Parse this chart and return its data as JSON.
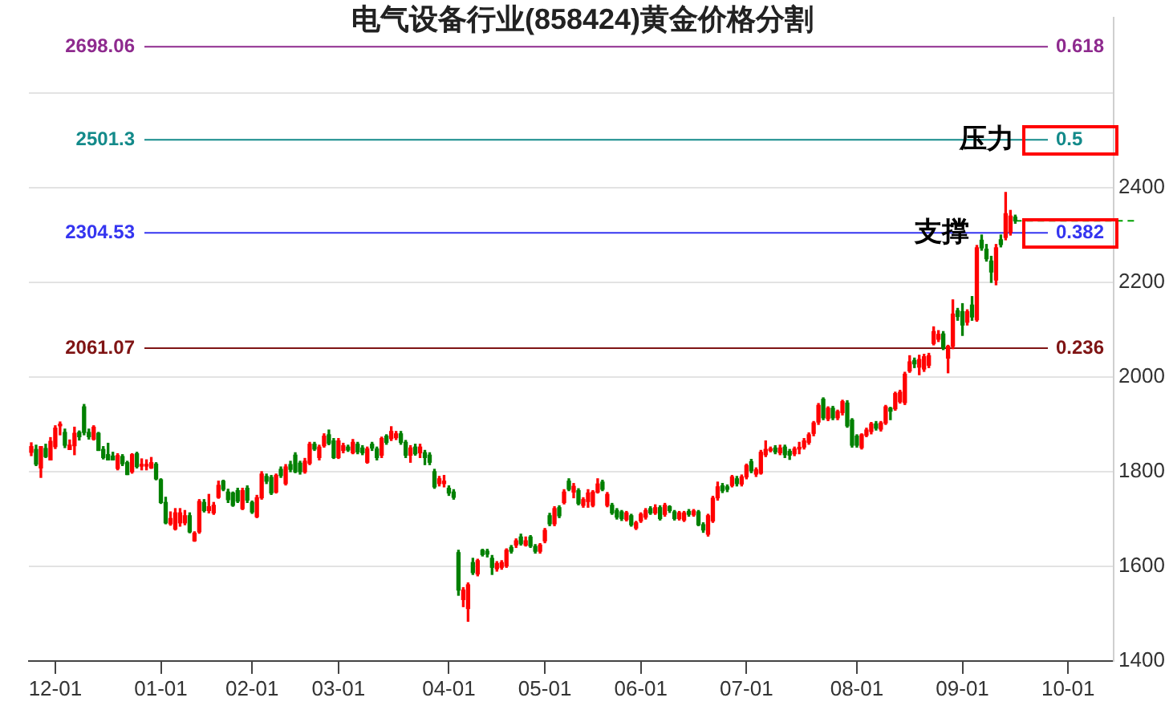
{
  "chart_data": {
    "type": "candlestick",
    "title": "电气设备行业(858424)黄金价格分割",
    "categories": [
      null,
      null,
      null,
      null,
      null,
      "12-01",
      null,
      null,
      null,
      null,
      null,
      null,
      null,
      null,
      null,
      null,
      null,
      null,
      null,
      null,
      null,
      null,
      null,
      null,
      null,
      null,
      null,
      "01-01",
      null,
      null,
      null,
      null,
      null,
      null,
      null,
      null,
      null,
      null,
      null,
      null,
      null,
      null,
      null,
      null,
      null,
      null,
      "02-01",
      null,
      null,
      null,
      null,
      null,
      null,
      null,
      null,
      null,
      null,
      null,
      null,
      null,
      null,
      null,
      null,
      null,
      "03-01",
      null,
      null,
      null,
      null,
      null,
      null,
      null,
      null,
      null,
      null,
      null,
      null,
      null,
      null,
      null,
      null,
      null,
      null,
      null,
      null,
      null,
      null,
      "04-01",
      null,
      null,
      null,
      null,
      null,
      null,
      null,
      null,
      null,
      null,
      null,
      null,
      null,
      null,
      null,
      null,
      null,
      null,
      null,
      "05-01",
      null,
      null,
      null,
      null,
      null,
      null,
      null,
      null,
      null,
      null,
      null,
      null,
      null,
      null,
      null,
      null,
      null,
      null,
      null,
      "06-01",
      null,
      null,
      null,
      null,
      null,
      null,
      null,
      null,
      null,
      null,
      null,
      null,
      null,
      null,
      null,
      null,
      null,
      null,
      null,
      null,
      null,
      "07-01",
      null,
      null,
      null,
      null,
      null,
      null,
      null,
      null,
      null,
      null,
      null,
      null,
      null,
      null,
      null,
      null,
      null,
      null,
      null,
      null,
      null,
      null,
      "08-01",
      null,
      null,
      null,
      null,
      null,
      null,
      null,
      null,
      null,
      null,
      null,
      null,
      null,
      null,
      null,
      null,
      null,
      null,
      null,
      null,
      null,
      "09-01",
      null,
      null,
      null,
      null,
      null,
      null,
      null,
      null,
      null,
      null,
      null,
      null,
      null,
      null,
      null,
      null,
      null,
      null,
      null,
      null,
      null,
      "10-01",
      null,
      null,
      null,
      null,
      null,
      null,
      null,
      null,
      null
    ],
    "ohlc": [
      [
        1841,
        1861,
        1834,
        1853
      ],
      [
        1847,
        1856,
        1813,
        1816
      ],
      [
        1808,
        1853,
        1788,
        1853
      ],
      [
        1849,
        1858,
        1830,
        1832
      ],
      [
        1825,
        1872,
        1825,
        1864
      ],
      [
        1853,
        1897,
        1849,
        1892
      ],
      [
        1897,
        1905,
        1878,
        1897
      ],
      [
        1883,
        1890,
        1851,
        1856
      ],
      [
        1847,
        1867,
        1847,
        1856
      ],
      [
        1855,
        1894,
        1836,
        1881
      ],
      [
        1883,
        1886,
        1867,
        1874
      ],
      [
        1937,
        1942,
        1878,
        1883
      ],
      [
        1883,
        1890,
        1869,
        1874
      ],
      [
        1869,
        1897,
        1867,
        1894
      ],
      [
        1881,
        1883,
        1845,
        1845
      ],
      [
        1847,
        1853,
        1827,
        1830
      ],
      [
        1836,
        1860,
        1825,
        1825
      ],
      [
        1833,
        1841,
        1825,
        1825
      ],
      [
        1807,
        1838,
        1804,
        1834
      ],
      [
        1832,
        1836,
        1813,
        1817
      ],
      [
        1819,
        1822,
        1794,
        1794
      ],
      [
        1800,
        1838,
        1797,
        1836
      ],
      [
        1838,
        1841,
        1808,
        1811
      ],
      [
        1812,
        1827,
        1804,
        1815
      ],
      [
        1812,
        1825,
        1804,
        1814
      ],
      [
        1808,
        1830,
        1807,
        1819
      ],
      [
        1816,
        1819,
        1783,
        1785
      ],
      [
        1783,
        1785,
        1733,
        1735
      ],
      [
        1735,
        1746,
        1690,
        1692
      ],
      [
        1690,
        1715,
        1687,
        1701
      ],
      [
        1679,
        1722,
        1677,
        1713
      ],
      [
        1692,
        1722,
        1685,
        1713
      ],
      [
        1692,
        1718,
        1688,
        1707
      ],
      [
        1707,
        1713,
        1671,
        1673
      ],
      [
        1654,
        1673,
        1653,
        1670
      ],
      [
        1673,
        1741,
        1670,
        1737
      ],
      [
        1735,
        1741,
        1715,
        1718
      ],
      [
        1718,
        1752,
        1713,
        1726
      ],
      [
        1713,
        1735,
        1710,
        1729
      ],
      [
        1746,
        1780,
        1744,
        1771
      ],
      [
        1780,
        1782,
        1760,
        1763
      ],
      [
        1757,
        1763,
        1735,
        1741
      ],
      [
        1755,
        1757,
        1727,
        1729
      ],
      [
        1760,
        1765,
        1735,
        1738
      ],
      [
        1722,
        1765,
        1720,
        1760
      ],
      [
        1765,
        1770,
        1735,
        1740
      ],
      [
        1735,
        1738,
        1712,
        1715
      ],
      [
        1705,
        1750,
        1703,
        1745
      ],
      [
        1745,
        1800,
        1742,
        1795
      ],
      [
        1790,
        1795,
        1775,
        1780
      ],
      [
        1788,
        1792,
        1752,
        1755
      ],
      [
        1757,
        1795,
        1755,
        1792
      ],
      [
        1805,
        1810,
        1788,
        1792
      ],
      [
        1775,
        1815,
        1772,
        1810
      ],
      [
        1815,
        1822,
        1800,
        1805
      ],
      [
        1835,
        1840,
        1798,
        1800
      ],
      [
        1818,
        1822,
        1795,
        1800
      ],
      [
        1800,
        1828,
        1797,
        1822
      ],
      [
        1818,
        1862,
        1815,
        1858
      ],
      [
        1858,
        1862,
        1845,
        1848
      ],
      [
        1830,
        1856,
        1825,
        1852
      ],
      [
        1855,
        1880,
        1852,
        1875
      ],
      [
        1878,
        1888,
        1857,
        1860
      ],
      [
        1865,
        1870,
        1828,
        1830
      ],
      [
        1830,
        1870,
        1828,
        1865
      ],
      [
        1845,
        1860,
        1840,
        1855
      ],
      [
        1852,
        1856,
        1843,
        1846
      ],
      [
        1840,
        1868,
        1838,
        1862
      ],
      [
        1858,
        1862,
        1838,
        1842
      ],
      [
        1850,
        1855,
        1836,
        1840
      ],
      [
        1820,
        1852,
        1818,
        1848
      ],
      [
        1858,
        1862,
        1845,
        1850
      ],
      [
        1848,
        1852,
        1825,
        1830
      ],
      [
        1835,
        1873,
        1830,
        1870
      ],
      [
        1875,
        1878,
        1858,
        1862
      ],
      [
        1870,
        1895,
        1866,
        1885
      ],
      [
        1872,
        1885,
        1868,
        1880
      ],
      [
        1880,
        1885,
        1858,
        1862
      ],
      [
        1862,
        1866,
        1830,
        1835
      ],
      [
        1835,
        1855,
        1820,
        1850
      ],
      [
        1852,
        1858,
        1835,
        1838
      ],
      [
        1840,
        1858,
        1830,
        1852
      ],
      [
        1840,
        1845,
        1815,
        1830
      ],
      [
        1835,
        1840,
        1815,
        1820
      ],
      [
        1800,
        1805,
        1765,
        1768
      ],
      [
        1775,
        1790,
        1770,
        1785
      ],
      [
        1775,
        1792,
        1768,
        1780
      ],
      [
        1765,
        1770,
        1750,
        1755
      ],
      [
        1757,
        1762,
        1742,
        1746
      ],
      [
        1629,
        1634,
        1539,
        1550
      ],
      [
        1530,
        1555,
        1515,
        1550
      ],
      [
        1511,
        1565,
        1484,
        1561
      ],
      [
        1608,
        1617,
        1583,
        1587
      ],
      [
        1584,
        1615,
        1580,
        1612
      ],
      [
        1634,
        1636,
        1622,
        1625
      ],
      [
        1632,
        1636,
        1620,
        1626
      ],
      [
        1617,
        1623,
        1583,
        1598
      ],
      [
        1595,
        1610,
        1590,
        1606
      ],
      [
        1598,
        1612,
        1594,
        1608
      ],
      [
        1601,
        1637,
        1598,
        1634
      ],
      [
        1640,
        1644,
        1628,
        1632
      ],
      [
        1645,
        1658,
        1640,
        1654
      ],
      [
        1662,
        1668,
        1645,
        1648
      ],
      [
        1645,
        1662,
        1643,
        1654
      ],
      [
        1662,
        1665,
        1640,
        1643
      ],
      [
        1642,
        1646,
        1628,
        1632
      ],
      [
        1632,
        1648,
        1628,
        1645
      ],
      [
        1654,
        1680,
        1650,
        1676
      ],
      [
        1707,
        1712,
        1686,
        1690
      ],
      [
        1690,
        1726,
        1686,
        1722
      ],
      [
        1724,
        1728,
        1703,
        1707
      ],
      [
        1735,
        1762,
        1732,
        1757
      ],
      [
        1780,
        1785,
        1760,
        1763
      ],
      [
        1757,
        1775,
        1745,
        1769
      ],
      [
        1760,
        1764,
        1730,
        1733
      ],
      [
        1729,
        1745,
        1725,
        1741
      ],
      [
        1737,
        1762,
        1725,
        1755
      ],
      [
        1729,
        1760,
        1726,
        1757
      ],
      [
        1757,
        1785,
        1755,
        1774
      ],
      [
        1778,
        1782,
        1760,
        1763
      ],
      [
        1729,
        1756,
        1726,
        1752
      ],
      [
        1729,
        1733,
        1710,
        1713
      ],
      [
        1718,
        1722,
        1700,
        1704
      ],
      [
        1715,
        1718,
        1697,
        1701
      ],
      [
        1699,
        1716,
        1696,
        1713
      ],
      [
        1707,
        1710,
        1685,
        1688
      ],
      [
        1681,
        1695,
        1678,
        1692
      ],
      [
        1696,
        1713,
        1693,
        1710
      ],
      [
        1704,
        1722,
        1700,
        1718
      ],
      [
        1722,
        1726,
        1710,
        1713
      ],
      [
        1713,
        1730,
        1710,
        1724
      ],
      [
        1724,
        1728,
        1698,
        1701
      ],
      [
        1710,
        1733,
        1706,
        1729
      ],
      [
        1726,
        1728,
        1714,
        1718
      ],
      [
        1715,
        1718,
        1698,
        1701
      ],
      [
        1701,
        1716,
        1698,
        1713
      ],
      [
        1698,
        1716,
        1695,
        1713
      ],
      [
        1716,
        1720,
        1706,
        1710
      ],
      [
        1709,
        1720,
        1706,
        1717
      ],
      [
        1715,
        1718,
        1686,
        1688
      ],
      [
        1688,
        1692,
        1672,
        1677
      ],
      [
        1668,
        1710,
        1664,
        1707
      ],
      [
        1696,
        1748,
        1693,
        1744
      ],
      [
        1745,
        1778,
        1740,
        1768
      ],
      [
        1770,
        1775,
        1756,
        1760
      ],
      [
        1768,
        1772,
        1758,
        1763
      ],
      [
        1771,
        1792,
        1768,
        1789
      ],
      [
        1785,
        1790,
        1770,
        1775
      ],
      [
        1774,
        1793,
        1770,
        1789
      ],
      [
        1789,
        1816,
        1785,
        1813
      ],
      [
        1821,
        1826,
        1798,
        1802
      ],
      [
        1795,
        1808,
        1790,
        1804
      ],
      [
        1797,
        1845,
        1795,
        1841
      ],
      [
        1836,
        1865,
        1832,
        1847
      ],
      [
        1845,
        1852,
        1842,
        1848
      ],
      [
        1850,
        1855,
        1838,
        1842
      ],
      [
        1840,
        1856,
        1836,
        1850
      ],
      [
        1852,
        1856,
        1830,
        1836
      ],
      [
        1843,
        1847,
        1826,
        1835
      ],
      [
        1838,
        1852,
        1834,
        1848
      ],
      [
        1848,
        1862,
        1838,
        1850
      ],
      [
        1852,
        1870,
        1848,
        1865
      ],
      [
        1862,
        1882,
        1858,
        1878
      ],
      [
        1881,
        1906,
        1876,
        1903
      ],
      [
        1905,
        1944,
        1900,
        1940
      ],
      [
        1953,
        1956,
        1910,
        1914
      ],
      [
        1912,
        1937,
        1908,
        1934
      ],
      [
        1934,
        1938,
        1910,
        1914
      ],
      [
        1914,
        1930,
        1910,
        1927
      ],
      [
        1925,
        1951,
        1920,
        1948
      ],
      [
        1945,
        1950,
        1894,
        1897
      ],
      [
        1909,
        1912,
        1852,
        1856
      ],
      [
        1875,
        1878,
        1852,
        1856
      ],
      [
        1851,
        1880,
        1848,
        1878
      ],
      [
        1877,
        1892,
        1874,
        1888
      ],
      [
        1885,
        1904,
        1880,
        1901
      ],
      [
        1901,
        1906,
        1888,
        1892
      ],
      [
        1890,
        1906,
        1886,
        1903
      ],
      [
        1903,
        1940,
        1900,
        1937
      ],
      [
        1934,
        1936,
        1910,
        1928
      ],
      [
        1933,
        1968,
        1930,
        1965
      ],
      [
        1948,
        1972,
        1945,
        1968
      ],
      [
        1946,
        2010,
        1942,
        2006
      ],
      [
        2013,
        2045,
        2010,
        2032
      ],
      [
        2035,
        2040,
        2020,
        2028
      ],
      [
        2021,
        2046,
        2005,
        2037
      ],
      [
        2017,
        2048,
        2012,
        2043
      ],
      [
        2025,
        2050,
        2020,
        2045
      ],
      [
        2071,
        2106,
        2068,
        2096
      ],
      [
        2080,
        2098,
        2075,
        2090
      ],
      [
        2091,
        2096,
        2058,
        2062
      ],
      [
        2040,
        2067,
        2009,
        2065
      ],
      [
        2065,
        2163,
        2060,
        2133
      ],
      [
        2140,
        2145,
        2120,
        2128
      ],
      [
        2138,
        2155,
        2088,
        2110
      ],
      [
        2116,
        2142,
        2110,
        2138
      ],
      [
        2152,
        2170,
        2120,
        2127
      ],
      [
        2121,
        2278,
        2118,
        2273
      ],
      [
        2289,
        2300,
        2268,
        2273
      ],
      [
        2270,
        2280,
        2245,
        2250
      ],
      [
        2245,
        2255,
        2200,
        2222
      ],
      [
        2205,
        2280,
        2195,
        2273
      ],
      [
        2290,
        2300,
        2275,
        2280
      ],
      [
        2295,
        2390,
        2290,
        2345
      ],
      [
        2306,
        2352,
        2300,
        2340
      ],
      [
        2338,
        2342,
        2325,
        2330
      ],
      null,
      null,
      null,
      null,
      null,
      null,
      null,
      null,
      null,
      null,
      null,
      null,
      null,
      null,
      null,
      null,
      null,
      null,
      null,
      null
    ],
    "colors": [
      "#ff0000",
      "#008000",
      "#ff0000",
      "#008000",
      "#ff0000",
      "#ff0000",
      "#ff0000",
      "#008000",
      "#ff0000",
      "#ff0000",
      "#008000",
      "#008000",
      "#008000",
      "#ff0000",
      "#008000",
      "#008000",
      "#008000",
      "#008000",
      "#ff0000",
      "#008000",
      "#008000",
      "#ff0000",
      "#008000",
      "#ff0000",
      "#ff0000",
      "#ff0000",
      "#008000",
      "#008000",
      "#008000",
      "#ff0000",
      "#ff0000",
      "#ff0000",
      "#ff0000",
      "#008000",
      "#ff0000",
      "#ff0000",
      "#008000",
      "#ff0000",
      "#ff0000",
      "#ff0000",
      "#008000",
      "#008000",
      "#008000",
      "#008000",
      "#ff0000",
      "#008000",
      "#008000",
      "#ff0000",
      "#ff0000",
      "#008000",
      "#008000",
      "#ff0000",
      "#008000",
      "#ff0000",
      "#008000",
      "#008000",
      "#008000",
      "#ff0000",
      "#ff0000",
      "#008000",
      "#ff0000",
      "#ff0000",
      "#008000",
      "#008000",
      "#ff0000",
      "#ff0000",
      "#008000",
      "#ff0000",
      "#008000",
      "#008000",
      "#ff0000",
      "#008000",
      "#008000",
      "#ff0000",
      "#008000",
      "#ff0000",
      "#ff0000",
      "#008000",
      "#008000",
      "#ff0000",
      "#008000",
      "#ff0000",
      "#008000",
      "#008000",
      "#008000",
      "#ff0000",
      "#ff0000",
      "#008000",
      "#008000",
      "#008000",
      "#ff0000",
      "#ff0000",
      "#008000",
      "#ff0000",
      "#008000",
      "#008000",
      "#008000",
      "#ff0000",
      "#ff0000",
      "#ff0000",
      "#008000",
      "#ff0000",
      "#008000",
      "#ff0000",
      "#008000",
      "#008000",
      "#ff0000",
      "#ff0000",
      "#008000",
      "#ff0000",
      "#008000",
      "#ff0000",
      "#008000",
      "#ff0000",
      "#008000",
      "#ff0000",
      "#ff0000",
      "#ff0000",
      "#ff0000",
      "#008000",
      "#ff0000",
      "#008000",
      "#008000",
      "#008000",
      "#ff0000",
      "#008000",
      "#ff0000",
      "#ff0000",
      "#ff0000",
      "#008000",
      "#ff0000",
      "#008000",
      "#ff0000",
      "#008000",
      "#008000",
      "#ff0000",
      "#ff0000",
      "#008000",
      "#ff0000",
      "#008000",
      "#008000",
      "#ff0000",
      "#ff0000",
      "#ff0000",
      "#008000",
      "#008000",
      "#ff0000",
      "#008000",
      "#ff0000",
      "#ff0000",
      "#008000",
      "#ff0000",
      "#ff0000",
      "#ff0000",
      "#ff0000",
      "#008000",
      "#ff0000",
      "#008000",
      "#008000",
      "#ff0000",
      "#ff0000",
      "#ff0000",
      "#ff0000",
      "#ff0000",
      "#ff0000",
      "#008000",
      "#ff0000",
      "#008000",
      "#ff0000",
      "#ff0000",
      "#008000",
      "#008000",
      "#008000",
      "#ff0000",
      "#ff0000",
      "#ff0000",
      "#008000",
      "#ff0000",
      "#ff0000",
      "#008000",
      "#ff0000",
      "#ff0000",
      "#ff0000",
      "#ff0000",
      "#008000",
      "#ff0000",
      "#ff0000",
      "#ff0000",
      "#ff0000",
      "#ff0000",
      "#008000",
      "#ff0000",
      "#ff0000",
      "#008000",
      "#008000",
      "#ff0000",
      "#008000",
      "#ff0000",
      "#008000",
      "#008000",
      "#008000",
      "#ff0000",
      "#008000",
      "#ff0000",
      "#ff0000",
      "#008000",
      null,
      null,
      null,
      null,
      null,
      null,
      null,
      null,
      null,
      null,
      null,
      null,
      null,
      null,
      null,
      null,
      null,
      null,
      null,
      null
    ],
    "ylim": [
      1400,
      2760
    ],
    "yticks": [
      1400,
      1600,
      1800,
      2000,
      2200,
      2400,
      {
        "value": 2600,
        "label": null
      }
    ],
    "grid": "y",
    "ref_lines": [
      {
        "axis": "y",
        "value": 2698.06,
        "label": "2698.06",
        "color": "#8e2a8e"
      },
      {
        "axis": "y",
        "value": 2501.3,
        "label": "2501.3",
        "color": "#138a8a"
      },
      {
        "axis": "y",
        "value": 2304.53,
        "label": "2304.53",
        "color": "#3535f0"
      },
      {
        "axis": "y",
        "value": 2061.07,
        "label": "2061.07",
        "color": "#7f1414"
      },
      {
        "axis": "y",
        "value": 2330,
        "color": "#00a000",
        "line_style": "dashed"
      }
    ],
    "annotations": [
      "0.618",
      "0.5",
      {
        "text": "压力",
        "y": 2501.3
      },
      "0.382",
      {
        "text": "支撑",
        "y": 2304.53
      },
      "0.236"
    ]
  }
}
